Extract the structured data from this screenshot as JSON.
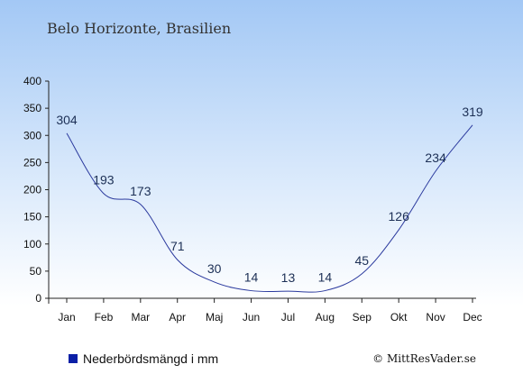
{
  "chart_data": {
    "type": "line",
    "title": "Belo Horizonte, Brasilien",
    "categories": [
      "Jan",
      "Feb",
      "Mar",
      "Apr",
      "Maj",
      "Jun",
      "Jul",
      "Aug",
      "Sep",
      "Okt",
      "Nov",
      "Dec"
    ],
    "series": [
      {
        "name": "Nederbördsmängd i mm",
        "values": [
          304,
          193,
          173,
          71,
          30,
          14,
          13,
          14,
          45,
          126,
          234,
          319
        ]
      }
    ],
    "yticks": [
      0,
      50,
      100,
      150,
      200,
      250,
      300,
      350,
      400
    ],
    "ylim": [
      0,
      400
    ],
    "xlabel": "",
    "ylabel": "",
    "grid": false,
    "legend_position": "bottom-left",
    "colors": {
      "line": "#2b3a9e",
      "legend_marker": "#0b1fa6",
      "background_top": "#a3c8f5",
      "background_bottom": "#ffffff",
      "label": "#1c2f55"
    }
  },
  "copyright": "© MittResVader.se"
}
